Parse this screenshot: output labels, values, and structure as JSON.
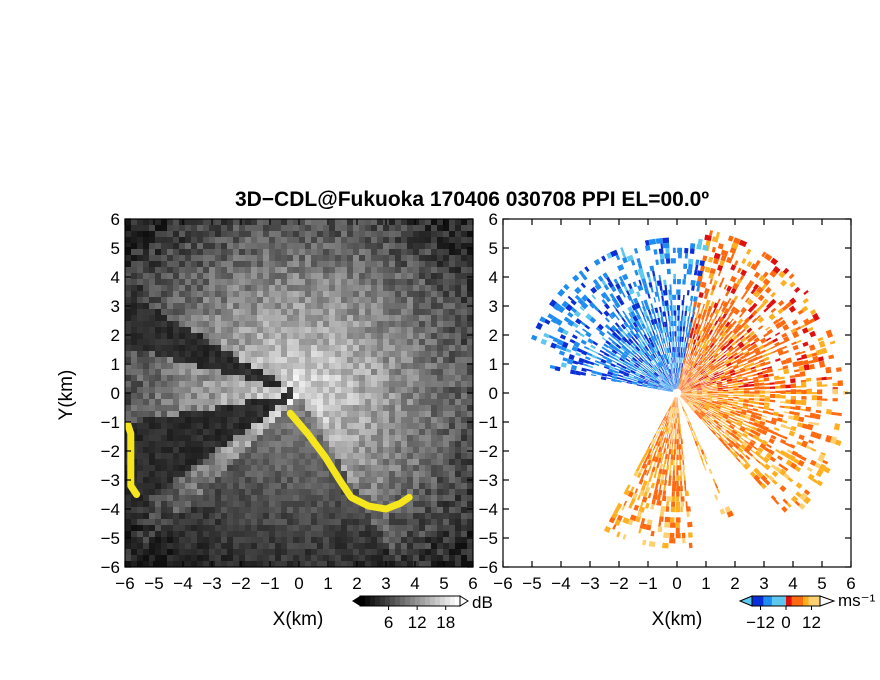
{
  "title": "3D−CDL@Fukuoka 170406 030708 PPI EL=00.0º",
  "chart_data": [
    {
      "type": "heatmap",
      "panel": "left",
      "variable": "signal intensity",
      "title": "",
      "xlabel": "X(km)",
      "ylabel": "Y(km)",
      "xlim": [
        -6,
        6
      ],
      "ylim": [
        -6,
        6
      ],
      "x_ticks": [
        "−6",
        "−5",
        "−4",
        "−3",
        "−2",
        "−1",
        "0",
        "1",
        "2",
        "3",
        "4",
        "5",
        "6"
      ],
      "y_ticks": [
        "6",
        "5",
        "4",
        "3",
        "2",
        "1",
        "0",
        "−1",
        "−2",
        "−3",
        "−4",
        "−5",
        "−6"
      ],
      "colorbar": {
        "unit": "dB",
        "tick_labels": [
          "6",
          "12",
          "18"
        ],
        "range": [
          0,
          21
        ],
        "palette": "grayscale"
      },
      "highlight_color": "#f5e61e",
      "blocked_sectors_deg": [
        [
          150,
          165
        ],
        [
          190,
          215
        ]
      ],
      "highlight_regions": [
        {
          "label": "hard-target",
          "points": [
            [
              -0.3,
              -0.7
            ],
            [
              0.3,
              -1.4
            ],
            [
              0.9,
              -2.2
            ],
            [
              1.4,
              -3.0
            ],
            [
              1.8,
              -3.6
            ],
            [
              2.4,
              -3.9
            ],
            [
              3.0,
              -4.0
            ],
            [
              3.5,
              -3.8
            ],
            [
              3.8,
              -3.6
            ]
          ]
        },
        {
          "label": "hard-target",
          "points": [
            [
              -5.9,
              -1.1
            ],
            [
              -5.8,
              -1.4
            ],
            [
              -5.8,
              -3.2
            ],
            [
              -5.6,
              -3.5
            ]
          ]
        }
      ]
    },
    {
      "type": "heatmap",
      "panel": "right",
      "variable": "radial velocity",
      "title": "",
      "xlabel": "X(km)",
      "ylabel": "",
      "xlim": [
        -6,
        6
      ],
      "ylim": [
        -6,
        6
      ],
      "x_ticks": [
        "−6",
        "−5",
        "−4",
        "−3",
        "−2",
        "−1",
        "0",
        "1",
        "2",
        "3",
        "4",
        "5",
        "6"
      ],
      "y_ticks": [
        "6",
        "5",
        "4",
        "3",
        "2",
        "1",
        "0",
        "−1",
        "−2",
        "−3",
        "−4",
        "−5",
        "−6"
      ],
      "colorbar": {
        "unit": "ms⁻¹",
        "tick_labels": [
          "−12",
          "0",
          "12"
        ],
        "range": [
          -16,
          16
        ],
        "palette": [
          "#0b2fd6",
          "#1e8cf0",
          "#5cc8f0",
          "#e01010",
          "#ff6a10",
          "#ffb020",
          "#ffd070"
        ]
      },
      "sectors": [
        {
          "az_from": 0,
          "az_to": 78,
          "max_range_km": 5.6,
          "velocity": 6
        },
        {
          "az_from": 78,
          "az_to": 160,
          "max_range_km": 5.2,
          "velocity": -9
        },
        {
          "az_from": 160,
          "az_to": 168,
          "max_range_km": 4.3,
          "velocity": -10
        },
        {
          "az_from": 242,
          "az_to": 275,
          "max_range_km": 5.2,
          "velocity": 8
        },
        {
          "az_from": 290,
          "az_to": 294,
          "max_range_km": 4.6,
          "velocity": 10
        },
        {
          "az_from": 312,
          "az_to": 360,
          "max_range_km": 5.8,
          "velocity": 8
        }
      ]
    }
  ]
}
